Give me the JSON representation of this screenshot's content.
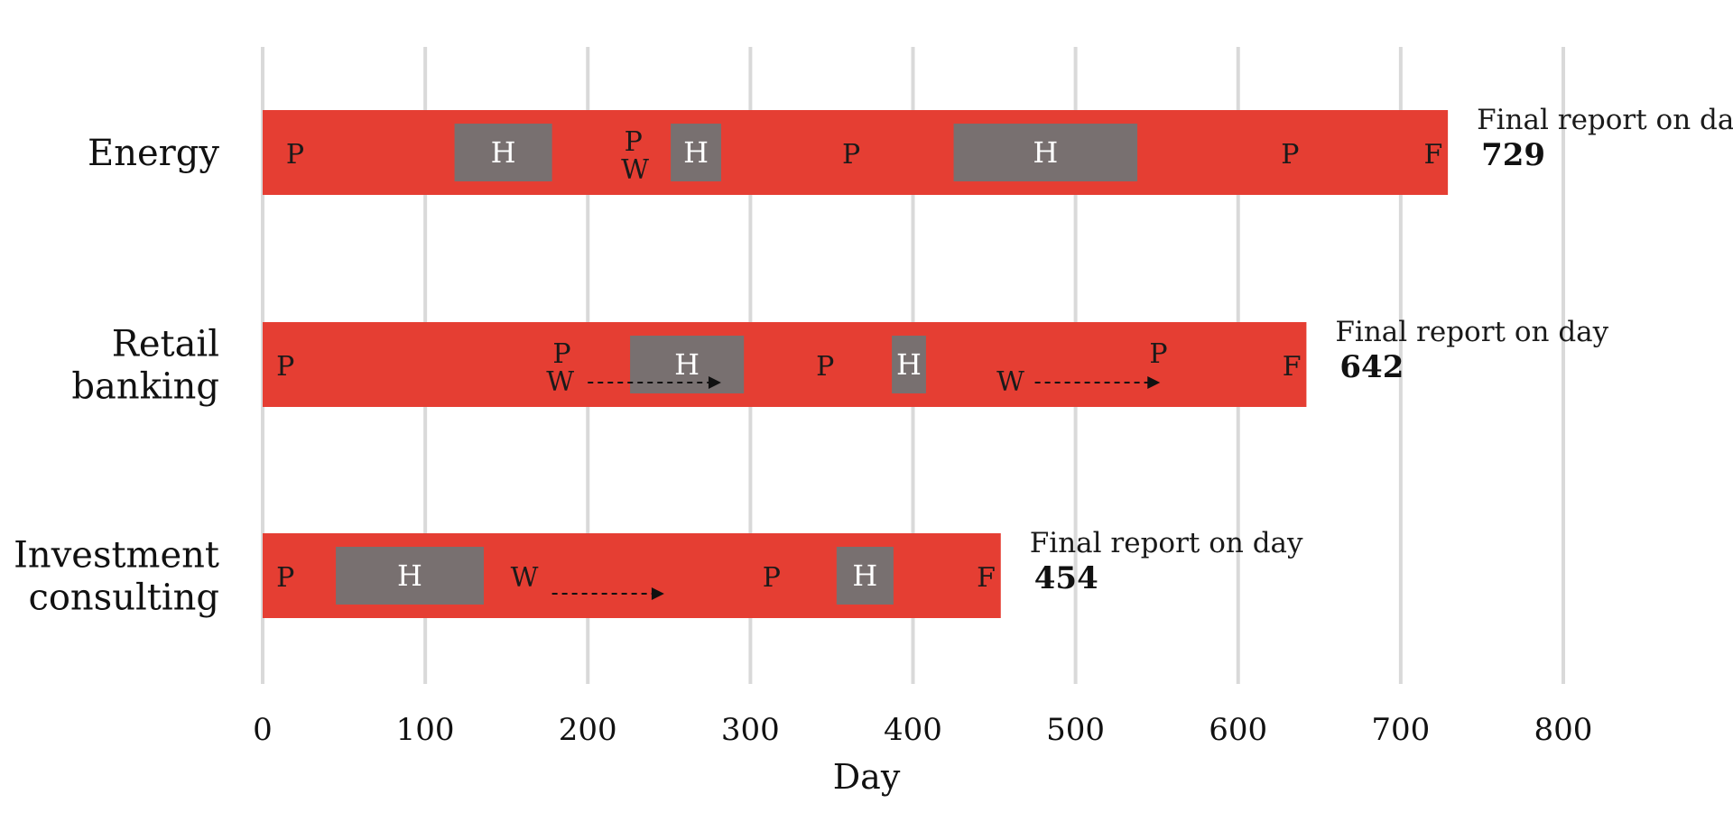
{
  "chart_data": {
    "type": "gantt",
    "xlabel": "Day",
    "xlim": [
      0,
      800
    ],
    "xticks": [
      0,
      100,
      200,
      300,
      400,
      500,
      600,
      700,
      800
    ],
    "grid": "vertical",
    "colors": {
      "bar": "#e53e33",
      "hold": "#787070",
      "grid": "#d9d9d9"
    },
    "final_prefix": "Final report on day",
    "rows": [
      {
        "label_lines": [
          "Energy"
        ],
        "end": 729,
        "holds": [
          {
            "start": 118,
            "end": 178,
            "label": "H"
          },
          {
            "start": 251,
            "end": 282,
            "label": "H"
          },
          {
            "start": 425,
            "end": 538,
            "label": "H"
          }
        ],
        "markers": [
          {
            "label": "P",
            "x": 20,
            "level": "mid"
          },
          {
            "label": "P",
            "x": 228,
            "level": "upper"
          },
          {
            "label": "W",
            "x": 229,
            "level": "lower"
          },
          {
            "label": "P",
            "x": 362,
            "level": "mid"
          },
          {
            "label": "P",
            "x": 632,
            "level": "mid"
          },
          {
            "label": "F",
            "x": 720,
            "level": "mid"
          }
        ],
        "arrows": []
      },
      {
        "label_lines": [
          "Retail",
          "banking"
        ],
        "end": 642,
        "holds": [
          {
            "start": 226,
            "end": 296,
            "label": "H"
          },
          {
            "start": 387,
            "end": 408,
            "label": "H"
          }
        ],
        "markers": [
          {
            "label": "P",
            "x": 14,
            "level": "mid"
          },
          {
            "label": "P",
            "x": 184,
            "level": "upper"
          },
          {
            "label": "W",
            "x": 183,
            "level": "lower"
          },
          {
            "label": "P",
            "x": 346,
            "level": "mid"
          },
          {
            "label": "W",
            "x": 460,
            "level": "lower"
          },
          {
            "label": "P",
            "x": 551,
            "level": "upper"
          },
          {
            "label": "F",
            "x": 633,
            "level": "mid"
          }
        ],
        "arrows": [
          {
            "from": 200,
            "to": 282
          },
          {
            "from": 475,
            "to": 552
          }
        ]
      },
      {
        "label_lines": [
          "Investment",
          "consulting"
        ],
        "end": 454,
        "holds": [
          {
            "start": 45,
            "end": 136,
            "label": "H"
          },
          {
            "start": 353,
            "end": 388,
            "label": "H"
          }
        ],
        "markers": [
          {
            "label": "P",
            "x": 14,
            "level": "mid"
          },
          {
            "label": "W",
            "x": 161,
            "level": "mid"
          },
          {
            "label": "P",
            "x": 313,
            "level": "mid"
          },
          {
            "label": "F",
            "x": 445,
            "level": "mid"
          }
        ],
        "arrows": [
          {
            "from": 178,
            "to": 247
          }
        ]
      }
    ]
  }
}
